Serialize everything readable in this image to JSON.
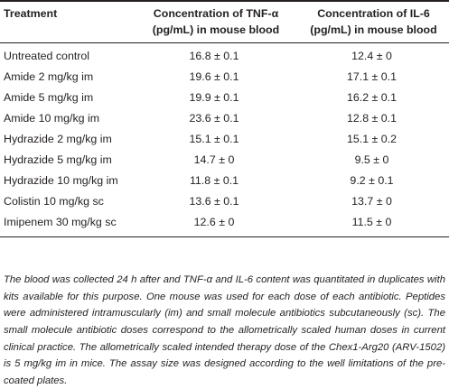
{
  "table": {
    "headers": [
      "Treatment",
      "Concentration of TNF-α\n(pg/mL) in mouse blood",
      "Concentration of IL-6\n(pg/mL) in mouse blood"
    ],
    "rows": [
      [
        "Untreated control",
        "16.8 ± 0.1",
        "12.4 ± 0"
      ],
      [
        "Amide 2 mg/kg im",
        "19.6 ± 0.1",
        "17.1 ± 0.1"
      ],
      [
        "Amide 5 mg/kg im",
        "19.9 ± 0.1",
        "16.2 ± 0.1"
      ],
      [
        "Amide 10 mg/kg im",
        "23.6 ± 0.1",
        "12.8 ± 0.1"
      ],
      [
        "Hydrazide 2 mg/kg im",
        "15.1 ± 0.1",
        "15.1 ± 0.2"
      ],
      [
        "Hydrazide 5 mg/kg im",
        "14.7 ± 0",
        "9.5 ± 0"
      ],
      [
        "Hydrazide 10 mg/kg im",
        "11.8 ± 0.1",
        "9.2 ± 0.1"
      ],
      [
        "Colistin 10 mg/kg sc",
        "13.6 ± 0.1",
        "13.7 ± 0"
      ],
      [
        "Imipenem 30 mg/kg sc",
        "12.6 ± 0",
        "11.5 ± 0"
      ]
    ]
  },
  "footnote": "The blood was collected 24 h after and TNF-α and IL-6 content was quantitated in duplicates with kits available for this purpose. One mouse was used for each dose of each antibiotic. Peptides were administered intramuscularly (im) and small molecule antibiotics subcutaneously (sc). The small molecule antibiotic doses correspond to the allometrically scaled human doses in current clinical practice. The allometrically scaled intended therapy dose of the Chex1-Arg20 (ARV-1502) is 5 mg/kg im in mice. The assay size was designed according to the well limitations of the pre-coated plates."
}
